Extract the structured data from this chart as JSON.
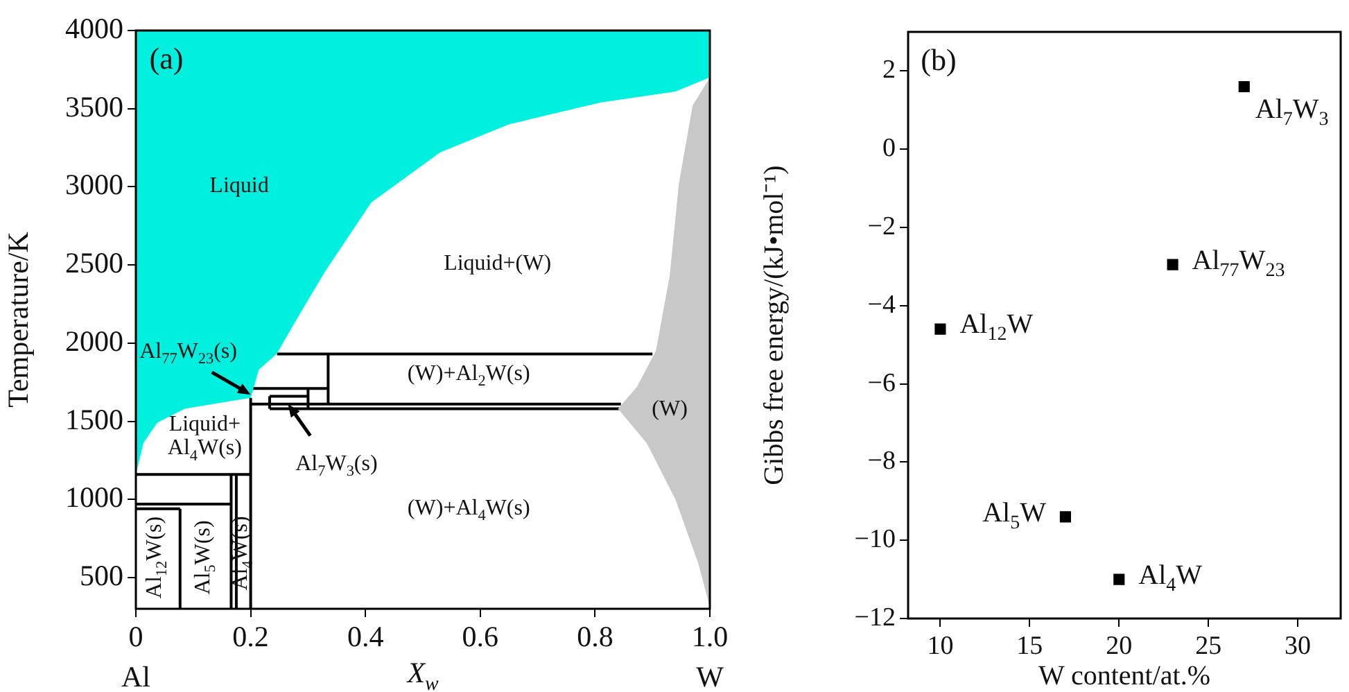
{
  "chart_data": [
    {
      "type": "line",
      "xlabel": "X$_{w}$",
      "ylabel": "Temperature/K",
      "xlim": [
        0,
        1
      ],
      "xticks": [
        0,
        0.2,
        0.4,
        0.6,
        0.8,
        {
          "value": 1,
          "label": "1.0"
        }
      ],
      "ylim": [
        300,
        4000
      ],
      "yticks": [
        500,
        1000,
        1500,
        2000,
        2500,
        3000,
        3500,
        4000
      ],
      "grid": false,
      "legend": false,
      "annotations": [
        "(a)",
        "Liquid",
        "Liquid+(W)",
        "(W)+Al$_{2}$W(s)",
        "(W)",
        "Liquid+\nAl$_{4}$W(s)",
        "(W)+Al$_{4}$W(s)",
        "Al$_{12}$W(s)",
        "Al$_{5}$W(s)",
        "Al$_{4}$W(s)",
        {
          "text": "Al$_{77}$W$_{23}$(s)",
          "x": 0.2,
          "y": 1670
        },
        {
          "text": "Al$_{7}$W$_{3}$(s)",
          "x": 0.265,
          "y": 1610
        },
        "Al",
        "W"
      ],
      "series": [
        {
          "type": "area",
          "color": "#00f0e0",
          "x": [
            0,
            0,
            0.013,
            0.037,
            0.085,
            0.15,
            0.2,
            0.214,
            0.245,
            0.286,
            0.33,
            0.41,
            0.53,
            0.65,
            0.81,
            0.94,
            1,
            1,
            0
          ],
          "values": [
            4000,
            1160,
            1360,
            1490,
            1580,
            1620,
            1650,
            1830,
            1930,
            2190,
            2460,
            2900,
            3220,
            3400,
            3540,
            3610,
            3700,
            4000,
            4000
          ]
        },
        {
          "type": "area",
          "color": "#c8c8c8",
          "x": [
            1,
            0.97,
            0.946,
            0.93,
            0.906,
            0.873,
            0.84,
            0.89,
            0.94,
            0.98,
            1,
            1
          ],
          "values": [
            3700,
            3520,
            3020,
            2430,
            1950,
            1720,
            1580,
            1360,
            1000,
            590,
            310,
            3700
          ]
        },
        {
          "type": "line",
          "color": "#000000",
          "x": [
            0.246,
            0.9
          ],
          "values": [
            1930,
            1930
          ]
        },
        {
          "type": "line",
          "color": "#000000",
          "x": [
            0,
            0.2
          ],
          "values": [
            1160,
            1160
          ]
        },
        {
          "type": "line",
          "color": "#000000",
          "x": [
            0,
            0.166
          ],
          "values": [
            970,
            970
          ]
        },
        {
          "type": "line",
          "color": "#000000",
          "x": [
            0,
            0.077
          ],
          "values": [
            940,
            940
          ]
        },
        {
          "type": "line",
          "color": "#000000",
          "x": [
            0.077,
            0.077
          ],
          "values": [
            300,
            940
          ]
        },
        {
          "type": "line",
          "color": "#000000",
          "x": [
            0.166,
            0.166
          ],
          "values": [
            300,
            1160
          ]
        },
        {
          "type": "line",
          "color": "#000000",
          "x": [
            0.175,
            0.175
          ],
          "values": [
            300,
            1160
          ]
        },
        {
          "type": "line",
          "color": "#000000",
          "x": [
            0.2,
            0.2
          ],
          "values": [
            300,
            1650
          ]
        },
        {
          "type": "line",
          "color": "#000000",
          "x": [
            0.2,
            0.845
          ],
          "values": [
            1610,
            1610
          ]
        },
        {
          "type": "line",
          "color": "#000000",
          "x": [
            0.233,
            0.845
          ],
          "values": [
            1580,
            1580
          ]
        },
        {
          "type": "line",
          "color": "#000000",
          "x": [
            0.2,
            0.335
          ],
          "values": [
            1710,
            1710
          ]
        },
        {
          "type": "line",
          "color": "#000000",
          "x": [
            0.233,
            0.3
          ],
          "values": [
            1660,
            1660
          ]
        },
        {
          "type": "line",
          "color": "#000000",
          "x": [
            0.233,
            0.233
          ],
          "values": [
            1580,
            1660
          ]
        },
        {
          "type": "line",
          "color": "#000000",
          "x": [
            0.3,
            0.3
          ],
          "values": [
            1580,
            1710
          ]
        },
        {
          "type": "line",
          "color": "#000000",
          "x": [
            0.335,
            0.335
          ],
          "values": [
            1610,
            1930
          ]
        }
      ]
    },
    {
      "type": "scatter",
      "xlabel": "W content/at.%",
      "ylabel": "Gibbs free energy/(kJ•mol⁻¹)",
      "xlim": [
        8.2,
        32.4
      ],
      "xticks": [
        10,
        15,
        20,
        25,
        30
      ],
      "ylim": [
        -12,
        3
      ],
      "yticks": [
        -12,
        -10,
        -8,
        -6,
        -4,
        -2,
        0,
        2
      ],
      "grid": false,
      "legend": false,
      "marker": "square",
      "annotations": [
        "(b)"
      ],
      "series": [
        {
          "name": "Al$_{12}$W",
          "color": "#000000",
          "x": [
            10
          ],
          "values": [
            -4.6
          ]
        },
        {
          "name": "Al$_{5}$W",
          "color": "#000000",
          "x": [
            17
          ],
          "values": [
            -9.4
          ]
        },
        {
          "name": "Al$_{4}$W",
          "color": "#000000",
          "x": [
            20
          ],
          "values": [
            -11
          ]
        },
        {
          "name": "Al$_{77}$W$_{23}$",
          "color": "#000000",
          "x": [
            23
          ],
          "values": [
            -2.95
          ]
        },
        {
          "name": "Al$_{7}$W$_{3}$",
          "color": "#000000",
          "x": [
            27
          ],
          "values": [
            1.6
          ]
        }
      ]
    }
  ]
}
